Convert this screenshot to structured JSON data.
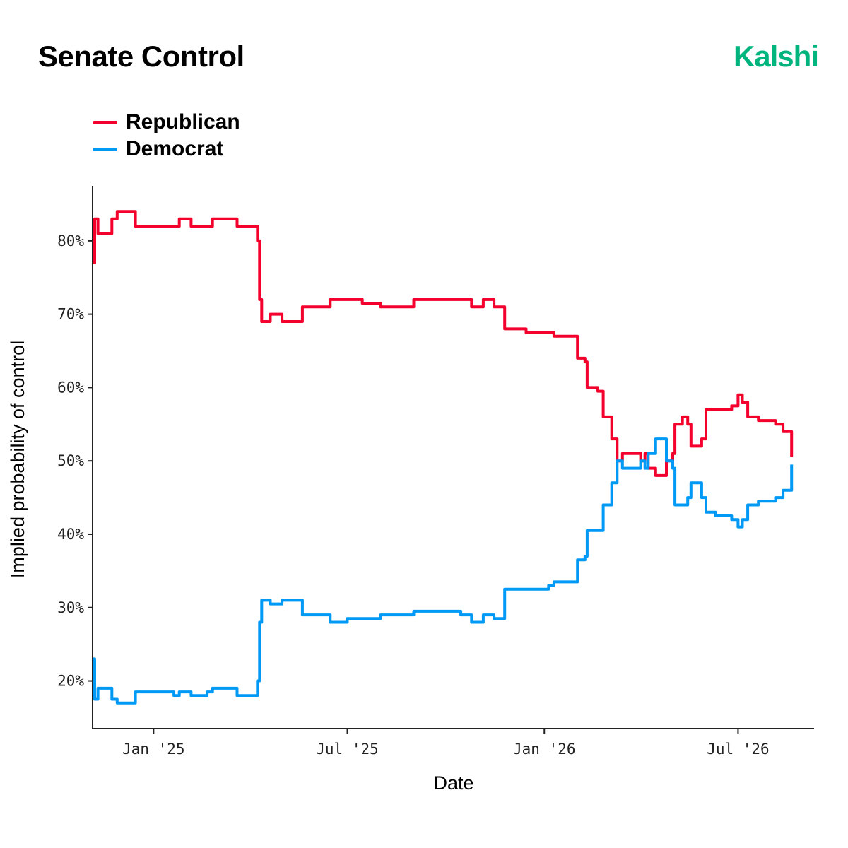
{
  "header": {
    "title": "Senate Control",
    "brand": "Kalshi"
  },
  "colors": {
    "republican": "#f4002c",
    "democrat": "#0099f5",
    "brand": "#00b47e",
    "axis": "#222222"
  },
  "chart_data": {
    "type": "line",
    "title": "Senate Control",
    "xlabel": "Date",
    "ylabel": "Implied probability of control",
    "x_ticks": [
      {
        "label": "Jan '25",
        "date": "2025-01-01"
      },
      {
        "label": "Jul '25",
        "date": "2025-07-01"
      },
      {
        "label": "Jan '26",
        "date": "2026-01-01"
      },
      {
        "label": "Jul '26",
        "date": "2026-07-01"
      }
    ],
    "y_ticks": [
      {
        "label": "20%",
        "value": 20
      },
      {
        "label": "30%",
        "value": 30
      },
      {
        "label": "40%",
        "value": 40
      },
      {
        "label": "50%",
        "value": 50
      },
      {
        "label": "60%",
        "value": 60
      },
      {
        "label": "70%",
        "value": 70
      },
      {
        "label": "80%",
        "value": 80
      }
    ],
    "xlim": [
      "2024-11-05",
      "2026-09-10"
    ],
    "ylim": [
      13.5,
      87.5
    ],
    "grid": false,
    "legend": "top-left",
    "series": [
      {
        "name": "Republican",
        "color": "#f4002c",
        "points": [
          [
            "2024-11-05",
            77
          ],
          [
            "2024-11-07",
            83
          ],
          [
            "2024-11-10",
            81
          ],
          [
            "2024-11-20",
            81
          ],
          [
            "2024-11-23",
            83
          ],
          [
            "2024-11-28",
            84
          ],
          [
            "2024-12-12",
            84
          ],
          [
            "2024-12-15",
            82
          ],
          [
            "2025-01-20",
            82
          ],
          [
            "2025-01-25",
            83
          ],
          [
            "2025-02-05",
            82
          ],
          [
            "2025-02-20",
            82
          ],
          [
            "2025-02-25",
            83
          ],
          [
            "2025-03-15",
            83
          ],
          [
            "2025-03-20",
            82
          ],
          [
            "2025-04-05",
            82
          ],
          [
            "2025-04-08",
            80
          ],
          [
            "2025-04-10",
            72
          ],
          [
            "2025-04-12",
            69
          ],
          [
            "2025-04-20",
            70
          ],
          [
            "2025-05-01",
            69
          ],
          [
            "2025-05-10",
            69
          ],
          [
            "2025-05-20",
            71
          ],
          [
            "2025-06-10",
            71
          ],
          [
            "2025-06-15",
            72
          ],
          [
            "2025-07-01",
            72
          ],
          [
            "2025-07-15",
            71.5
          ],
          [
            "2025-08-01",
            71
          ],
          [
            "2025-08-15",
            71
          ],
          [
            "2025-09-01",
            72
          ],
          [
            "2025-10-01",
            72
          ],
          [
            "2025-10-15",
            72
          ],
          [
            "2025-10-25",
            71
          ],
          [
            "2025-11-05",
            72
          ],
          [
            "2025-11-15",
            71
          ],
          [
            "2025-11-25",
            68
          ],
          [
            "2025-12-15",
            67.5
          ],
          [
            "2026-01-05",
            67.5
          ],
          [
            "2026-01-10",
            67
          ],
          [
            "2026-01-25",
            67
          ],
          [
            "2026-02-01",
            64
          ],
          [
            "2026-02-08",
            63.5
          ],
          [
            "2026-02-10",
            60
          ],
          [
            "2026-02-20",
            59.5
          ],
          [
            "2026-02-25",
            56
          ],
          [
            "2026-03-05",
            53
          ],
          [
            "2026-03-10",
            50
          ],
          [
            "2026-03-15",
            51
          ],
          [
            "2026-03-25",
            51
          ],
          [
            "2026-04-01",
            50
          ],
          [
            "2026-04-05",
            51
          ],
          [
            "2026-04-08",
            49
          ],
          [
            "2026-04-15",
            48
          ],
          [
            "2026-04-25",
            50
          ],
          [
            "2026-05-01",
            51
          ],
          [
            "2026-05-03",
            55
          ],
          [
            "2026-05-10",
            56
          ],
          [
            "2026-05-15",
            55
          ],
          [
            "2026-05-18",
            52
          ],
          [
            "2026-05-28",
            53
          ],
          [
            "2026-06-01",
            57
          ],
          [
            "2026-06-10",
            57
          ],
          [
            "2026-06-25",
            57.5
          ],
          [
            "2026-07-01",
            59
          ],
          [
            "2026-07-05",
            58
          ],
          [
            "2026-07-10",
            56
          ],
          [
            "2026-07-20",
            55.5
          ],
          [
            "2026-08-05",
            55
          ],
          [
            "2026-08-12",
            54
          ],
          [
            "2026-08-18",
            54
          ],
          [
            "2026-08-20",
            50.5
          ]
        ]
      },
      {
        "name": "Democrat",
        "color": "#0099f5",
        "points": [
          [
            "2024-11-05",
            23
          ],
          [
            "2024-11-07",
            17.5
          ],
          [
            "2024-11-10",
            19
          ],
          [
            "2024-11-20",
            19
          ],
          [
            "2024-11-23",
            17.5
          ],
          [
            "2024-11-28",
            17
          ],
          [
            "2024-12-12",
            17
          ],
          [
            "2024-12-15",
            18.5
          ],
          [
            "2025-01-20",
            18
          ],
          [
            "2025-01-25",
            18.5
          ],
          [
            "2025-02-05",
            18
          ],
          [
            "2025-02-20",
            18.5
          ],
          [
            "2025-02-25",
            19
          ],
          [
            "2025-03-15",
            19
          ],
          [
            "2025-03-20",
            18
          ],
          [
            "2025-04-05",
            18
          ],
          [
            "2025-04-08",
            20
          ],
          [
            "2025-04-10",
            28
          ],
          [
            "2025-04-12",
            31
          ],
          [
            "2025-04-20",
            30.5
          ],
          [
            "2025-05-01",
            31
          ],
          [
            "2025-05-10",
            31
          ],
          [
            "2025-05-20",
            29
          ],
          [
            "2025-06-10",
            29
          ],
          [
            "2025-06-15",
            28
          ],
          [
            "2025-07-01",
            28.5
          ],
          [
            "2025-07-15",
            28.5
          ],
          [
            "2025-08-01",
            29
          ],
          [
            "2025-08-15",
            29
          ],
          [
            "2025-09-01",
            29.5
          ],
          [
            "2025-10-01",
            29.5
          ],
          [
            "2025-10-15",
            29
          ],
          [
            "2025-10-25",
            28
          ],
          [
            "2025-11-05",
            29
          ],
          [
            "2025-11-15",
            28.5
          ],
          [
            "2025-11-25",
            32.5
          ],
          [
            "2025-12-15",
            32.5
          ],
          [
            "2026-01-05",
            33
          ],
          [
            "2026-01-10",
            33.5
          ],
          [
            "2026-01-25",
            33.5
          ],
          [
            "2026-02-01",
            36.5
          ],
          [
            "2026-02-08",
            37
          ],
          [
            "2026-02-10",
            40.5
          ],
          [
            "2026-02-20",
            40.5
          ],
          [
            "2026-02-25",
            44
          ],
          [
            "2026-03-05",
            47
          ],
          [
            "2026-03-10",
            50
          ],
          [
            "2026-03-15",
            49
          ],
          [
            "2026-03-25",
            49
          ],
          [
            "2026-04-01",
            50
          ],
          [
            "2026-04-05",
            49
          ],
          [
            "2026-04-08",
            51
          ],
          [
            "2026-04-15",
            53
          ],
          [
            "2026-04-25",
            50
          ],
          [
            "2026-05-01",
            49
          ],
          [
            "2026-05-03",
            44
          ],
          [
            "2026-05-10",
            44
          ],
          [
            "2026-05-15",
            45
          ],
          [
            "2026-05-18",
            47
          ],
          [
            "2026-05-28",
            45
          ],
          [
            "2026-06-01",
            43
          ],
          [
            "2026-06-10",
            42.5
          ],
          [
            "2026-06-25",
            42
          ],
          [
            "2026-07-01",
            41
          ],
          [
            "2026-07-05",
            42
          ],
          [
            "2026-07-10",
            44
          ],
          [
            "2026-07-20",
            44.5
          ],
          [
            "2026-08-05",
            45
          ],
          [
            "2026-08-12",
            46
          ],
          [
            "2026-08-18",
            46
          ],
          [
            "2026-08-20",
            49.5
          ]
        ]
      }
    ]
  }
}
